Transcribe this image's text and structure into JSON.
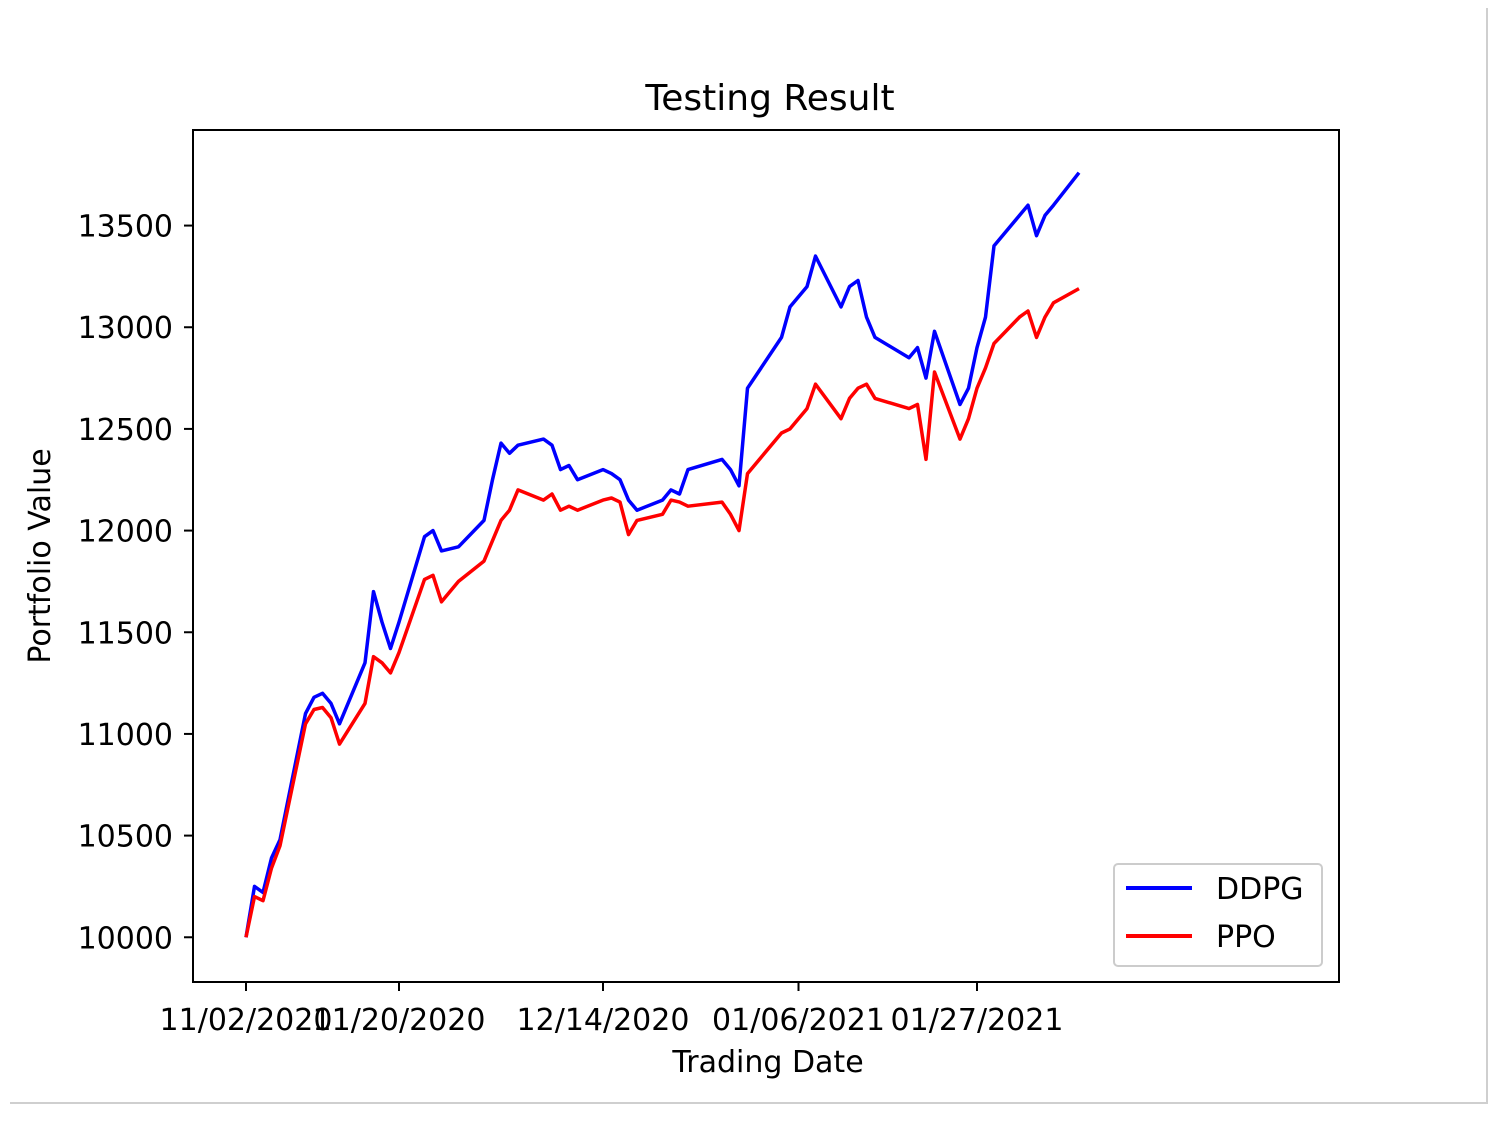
{
  "chart_data": {
    "type": "line",
    "title": "Testing Result",
    "xlabel": "Trading Date",
    "ylabel": "Portfolio Value",
    "x_tick_labels": [
      "11/02/2020",
      "11/20/2020",
      "12/14/2020",
      "01/06/2021",
      "01/27/2021"
    ],
    "y_ticks": [
      10000,
      10500,
      11000,
      11500,
      12000,
      12500,
      13000,
      13500
    ],
    "ylim": [
      9780,
      13970
    ],
    "grid": false,
    "legend_position": "lower-right",
    "series": [
      {
        "name": "DDPG",
        "color": "#0000ff",
        "points": [
          [
            "2020-11-02",
            10000
          ],
          [
            "2020-11-03",
            10250
          ],
          [
            "2020-11-04",
            10220
          ],
          [
            "2020-11-05",
            10390
          ],
          [
            "2020-11-06",
            10480
          ],
          [
            "2020-11-09",
            11100
          ],
          [
            "2020-11-10",
            11180
          ],
          [
            "2020-11-11",
            11200
          ],
          [
            "2020-11-12",
            11150
          ],
          [
            "2020-11-13",
            11050
          ],
          [
            "2020-11-16",
            11350
          ],
          [
            "2020-11-17",
            11700
          ],
          [
            "2020-11-18",
            11550
          ],
          [
            "2020-11-19",
            11420
          ],
          [
            "2020-11-20",
            11550
          ],
          [
            "2020-11-23",
            11970
          ],
          [
            "2020-11-24",
            12000
          ],
          [
            "2020-11-25",
            11900
          ],
          [
            "2020-11-27",
            11920
          ],
          [
            "2020-11-30",
            12050
          ],
          [
            "2020-12-01",
            12250
          ],
          [
            "2020-12-02",
            12430
          ],
          [
            "2020-12-03",
            12380
          ],
          [
            "2020-12-04",
            12420
          ],
          [
            "2020-12-07",
            12450
          ],
          [
            "2020-12-08",
            12420
          ],
          [
            "2020-12-09",
            12300
          ],
          [
            "2020-12-10",
            12320
          ],
          [
            "2020-12-11",
            12250
          ],
          [
            "2020-12-14",
            12300
          ],
          [
            "2020-12-15",
            12280
          ],
          [
            "2020-12-16",
            12250
          ],
          [
            "2020-12-17",
            12150
          ],
          [
            "2020-12-18",
            12100
          ],
          [
            "2020-12-21",
            12150
          ],
          [
            "2020-12-22",
            12200
          ],
          [
            "2020-12-23",
            12180
          ],
          [
            "2020-12-24",
            12300
          ],
          [
            "2020-12-28",
            12350
          ],
          [
            "2020-12-29",
            12300
          ],
          [
            "2020-12-30",
            12220
          ],
          [
            "2020-12-31",
            12700
          ],
          [
            "2021-01-04",
            12950
          ],
          [
            "2021-01-05",
            13100
          ],
          [
            "2021-01-06",
            13150
          ],
          [
            "2021-01-07",
            13200
          ],
          [
            "2021-01-08",
            13350
          ],
          [
            "2021-01-11",
            13100
          ],
          [
            "2021-01-12",
            13200
          ],
          [
            "2021-01-13",
            13230
          ],
          [
            "2021-01-14",
            13050
          ],
          [
            "2021-01-15",
            12950
          ],
          [
            "2021-01-19",
            12850
          ],
          [
            "2021-01-20",
            12900
          ],
          [
            "2021-01-21",
            12750
          ],
          [
            "2021-01-22",
            12980
          ],
          [
            "2021-01-25",
            12620
          ],
          [
            "2021-01-26",
            12700
          ],
          [
            "2021-01-27",
            12900
          ],
          [
            "2021-01-28",
            13050
          ],
          [
            "2021-01-29",
            13400
          ],
          [
            "2021-02-01",
            13550
          ],
          [
            "2021-02-02",
            13600
          ],
          [
            "2021-02-03",
            13450
          ],
          [
            "2021-02-04",
            13550
          ],
          [
            "2021-02-05",
            13600
          ],
          [
            "2021-02-08",
            13760
          ]
        ]
      },
      {
        "name": "PPO",
        "color": "#ff0000",
        "points": [
          [
            "2020-11-02",
            10000
          ],
          [
            "2020-11-03",
            10200
          ],
          [
            "2020-11-04",
            10180
          ],
          [
            "2020-11-05",
            10340
          ],
          [
            "2020-11-06",
            10450
          ],
          [
            "2020-11-09",
            11050
          ],
          [
            "2020-11-10",
            11120
          ],
          [
            "2020-11-11",
            11130
          ],
          [
            "2020-11-12",
            11080
          ],
          [
            "2020-11-13",
            10950
          ],
          [
            "2020-11-16",
            11150
          ],
          [
            "2020-11-17",
            11380
          ],
          [
            "2020-11-18",
            11350
          ],
          [
            "2020-11-19",
            11300
          ],
          [
            "2020-11-20",
            11400
          ],
          [
            "2020-11-23",
            11760
          ],
          [
            "2020-11-24",
            11780
          ],
          [
            "2020-11-25",
            11650
          ],
          [
            "2020-11-27",
            11750
          ],
          [
            "2020-11-30",
            11850
          ],
          [
            "2020-12-01",
            11950
          ],
          [
            "2020-12-02",
            12050
          ],
          [
            "2020-12-03",
            12100
          ],
          [
            "2020-12-04",
            12200
          ],
          [
            "2020-12-07",
            12150
          ],
          [
            "2020-12-08",
            12180
          ],
          [
            "2020-12-09",
            12100
          ],
          [
            "2020-12-10",
            12120
          ],
          [
            "2020-12-11",
            12100
          ],
          [
            "2020-12-14",
            12150
          ],
          [
            "2020-12-15",
            12160
          ],
          [
            "2020-12-16",
            12140
          ],
          [
            "2020-12-17",
            11980
          ],
          [
            "2020-12-18",
            12050
          ],
          [
            "2020-12-21",
            12080
          ],
          [
            "2020-12-22",
            12150
          ],
          [
            "2020-12-23",
            12140
          ],
          [
            "2020-12-24",
            12120
          ],
          [
            "2020-12-28",
            12140
          ],
          [
            "2020-12-29",
            12080
          ],
          [
            "2020-12-30",
            12000
          ],
          [
            "2020-12-31",
            12280
          ],
          [
            "2021-01-04",
            12480
          ],
          [
            "2021-01-05",
            12500
          ],
          [
            "2021-01-06",
            12550
          ],
          [
            "2021-01-07",
            12600
          ],
          [
            "2021-01-08",
            12720
          ],
          [
            "2021-01-11",
            12550
          ],
          [
            "2021-01-12",
            12650
          ],
          [
            "2021-01-13",
            12700
          ],
          [
            "2021-01-14",
            12720
          ],
          [
            "2021-01-15",
            12650
          ],
          [
            "2021-01-19",
            12600
          ],
          [
            "2021-01-20",
            12620
          ],
          [
            "2021-01-21",
            12350
          ],
          [
            "2021-01-22",
            12780
          ],
          [
            "2021-01-25",
            12450
          ],
          [
            "2021-01-26",
            12550
          ],
          [
            "2021-01-27",
            12700
          ],
          [
            "2021-01-28",
            12800
          ],
          [
            "2021-01-29",
            12920
          ],
          [
            "2021-02-01",
            13050
          ],
          [
            "2021-02-02",
            13080
          ],
          [
            "2021-02-03",
            12950
          ],
          [
            "2021-02-04",
            13050
          ],
          [
            "2021-02-05",
            13120
          ],
          [
            "2021-02-08",
            13190
          ]
        ]
      }
    ]
  }
}
